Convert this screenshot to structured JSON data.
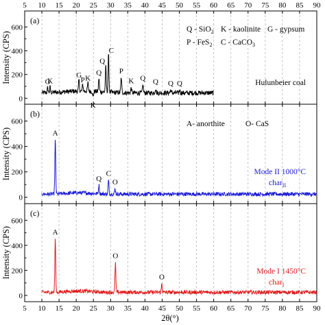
{
  "chart_data": [
    {
      "type": "line",
      "panel_label": "(a)",
      "xlim": [
        5,
        90
      ],
      "ylim": [
        -50,
        700
      ],
      "yticks": [
        0,
        200,
        400,
        600
      ],
      "ylabel": "Intensity (CPS)",
      "sample_label": "Hulunbeier coal",
      "series_color": "#000000",
      "legend": [
        {
          "text": "Q - SiO",
          "sub": "2"
        },
        {
          "text": "K - kaolinite",
          "sub": ""
        },
        {
          "text": "G - gypsum",
          "sub": ""
        },
        {
          "text": "P - FeS",
          "sub": "2"
        },
        {
          "text": "C - CaCO",
          "sub": "3"
        }
      ],
      "baseline": 45,
      "noise": 20,
      "x_start": 10,
      "x_end": 60,
      "peaks": [
        {
          "x": 11.7,
          "y": 85,
          "label": "G"
        },
        {
          "x": 12.4,
          "y": 90,
          "label": "K"
        },
        {
          "x": 20.8,
          "y": 140,
          "label": "G"
        },
        {
          "x": 21.9,
          "y": 100,
          "label": "P"
        },
        {
          "x": 23.4,
          "y": 115,
          "label": "K"
        },
        {
          "x": 24.9,
          "y": -5,
          "label": "K"
        },
        {
          "x": 26.6,
          "y": 160,
          "label": "Q"
        },
        {
          "x": 28.6,
          "y": 260,
          "label": "Q"
        },
        {
          "x": 29.4,
          "y": 360,
          "label": "C"
        },
        {
          "x": 33.1,
          "y": 175,
          "label": "P"
        },
        {
          "x": 36.0,
          "y": 90,
          "label": "K"
        },
        {
          "x": 39.4,
          "y": 115,
          "label": "Q"
        },
        {
          "x": 43.1,
          "y": 85,
          "label": "Q"
        },
        {
          "x": 47.5,
          "y": 70,
          "label": "Q"
        },
        {
          "x": 50.1,
          "y": 70,
          "label": "Q"
        }
      ]
    },
    {
      "type": "line",
      "panel_label": "(b)",
      "xlim": [
        5,
        90
      ],
      "ylim": [
        -50,
        700
      ],
      "yticks": [
        0,
        200,
        400,
        600
      ],
      "ylabel": "Intensity (CPS)",
      "sample_label": "Mode II 1000°C",
      "sample_sublabel": "char",
      "sample_subscript": "II",
      "series_color": "#1a1ad6",
      "legend": [
        {
          "text": "A- anorthite",
          "sub": ""
        },
        {
          "text": "O- CaS",
          "sub": ""
        }
      ],
      "baseline": 25,
      "noise": 15,
      "x_start": 10,
      "x_end": 90,
      "peaks": [
        {
          "x": 13.9,
          "y": 455,
          "label": "A"
        },
        {
          "x": 26.6,
          "y": 95,
          "label": "Q"
        },
        {
          "x": 29.4,
          "y": 135,
          "label": "C"
        },
        {
          "x": 31.3,
          "y": 70,
          "label": "O"
        }
      ]
    },
    {
      "type": "line",
      "panel_label": "(c)",
      "xlim": [
        5,
        90
      ],
      "ylim": [
        -50,
        700
      ],
      "yticks": [
        0,
        200,
        400,
        600
      ],
      "ylabel": "Intensity (CPS)",
      "xlabel": "2θ(°)",
      "sample_label": "Mode I 1450°C",
      "sample_sublabel": "char",
      "sample_subscript": "I",
      "series_color": "#e01b1b",
      "legend": [],
      "baseline": 25,
      "noise": 15,
      "x_start": 10,
      "x_end": 90,
      "peaks": [
        {
          "x": 13.9,
          "y": 455,
          "label": "A"
        },
        {
          "x": 31.4,
          "y": 265,
          "label": "O"
        },
        {
          "x": 44.9,
          "y": 95,
          "label": "O"
        }
      ]
    }
  ],
  "x_axis": {
    "ticks": [
      5,
      10,
      15,
      20,
      25,
      30,
      35,
      40,
      45,
      50,
      55,
      60,
      65,
      70,
      75,
      80,
      85,
      90
    ],
    "xlabel": "2θ(°)"
  }
}
